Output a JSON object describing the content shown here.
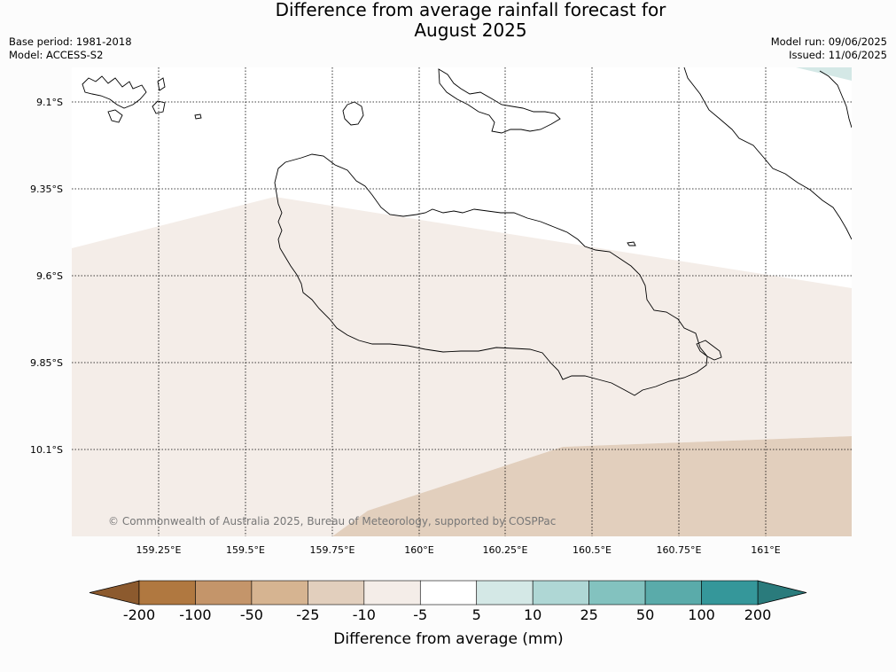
{
  "header": {
    "title_line1": "Difference from average rainfall forecast for",
    "title_line2": "August 2025",
    "base_period": "Base period: 1981-2018",
    "model": "Model: ACCESS-S2",
    "model_run": "Model run: 09/06/2025",
    "issued": "Issued: 11/06/2025"
  },
  "map": {
    "lat_labels": [
      "9.1°S",
      "9.35°S",
      "9.6°S",
      "9.85°S",
      "10.1°S"
    ],
    "lon_labels": [
      "159.25°E",
      "159.5°E",
      "159.75°E",
      "160°E",
      "160.25°E",
      "160.5°E",
      "160.75°E",
      "161°E"
    ],
    "copyright": "© Commonwealth of Australia 2025, Bureau of Meteorology, supported by COSPPac",
    "regions": [
      {
        "category": "-10 to -5",
        "color": "#f4ede8"
      },
      {
        "category": "-25 to -10",
        "color": "#e2cfbd"
      },
      {
        "category": "5 to 10",
        "color": "#d4e8e6"
      }
    ]
  },
  "colorbar": {
    "title": "Difference from average (mm)",
    "boundaries": [
      "-200",
      "-100",
      "-50",
      "-25",
      "-10",
      "-5",
      "5",
      "10",
      "25",
      "50",
      "100",
      "200"
    ],
    "colors": [
      "#8c5a2e",
      "#b07840",
      "#c4956a",
      "#d6b491",
      "#e2cfbd",
      "#f4ede8",
      "#ffffff",
      "#d4e8e6",
      "#afd7d5",
      "#83c2bf",
      "#5aabaa",
      "#35979a",
      "#2a7b7c"
    ]
  }
}
